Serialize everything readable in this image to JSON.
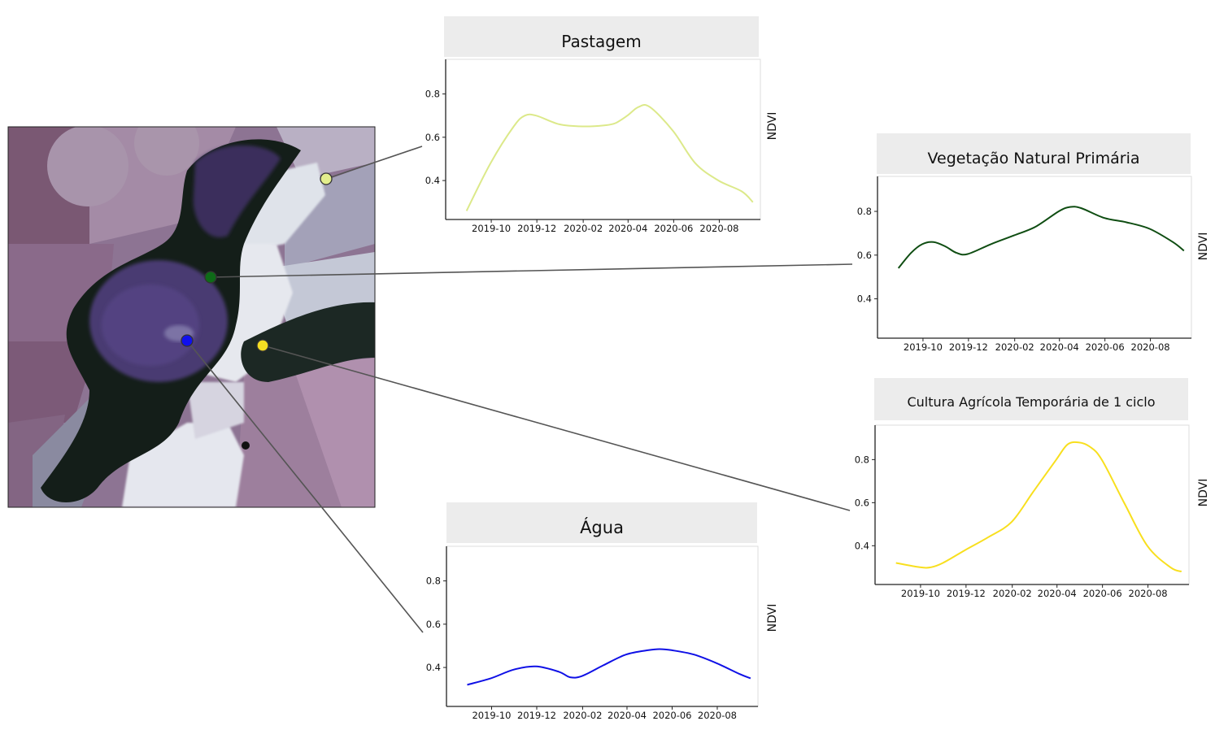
{
  "colors": {
    "pastagem": "#dce98a",
    "vegetacao": "#0f4d12",
    "cultura": "#f8df1e",
    "agua": "#0f10e6",
    "panel_header": "#ececec",
    "connector": "#555555"
  },
  "map": {
    "points": [
      {
        "name": "pastagem-point",
        "color": "#e3ee8d"
      },
      {
        "name": "vegetacao-point",
        "color": "#0e6b18"
      },
      {
        "name": "agua-point",
        "color": "#1010ee"
      },
      {
        "name": "cultura-point",
        "color": "#f5de22"
      }
    ]
  },
  "chart_data": [
    {
      "id": "pastagem",
      "type": "line",
      "title": "Pastagem",
      "ylabel": "NDVI",
      "xlabel": "",
      "x_tick_labels": [
        "2019-10",
        "2019-12",
        "2020-02",
        "2020-04",
        "2020-06",
        "2020-08"
      ],
      "y_ticks": [
        0.4,
        0.6,
        0.8
      ],
      "xlim": [
        "2019-08-01",
        "2020-09-25"
      ],
      "ylim": [
        0.22,
        0.96
      ],
      "grid": false,
      "series": [
        {
          "color": "#dce98a",
          "x": [
            "2019-08-29",
            "2019-09-30",
            "2019-10-31",
            "2019-11-15",
            "2019-11-30",
            "2019-12-31",
            "2020-01-31",
            "2020-02-29",
            "2020-03-15",
            "2020-03-31",
            "2020-04-15",
            "2020-04-30",
            "2020-05-31",
            "2020-06-30",
            "2020-07-31",
            "2020-08-31",
            "2020-09-15"
          ],
          "y": [
            0.26,
            0.48,
            0.65,
            0.7,
            0.7,
            0.66,
            0.65,
            0.655,
            0.665,
            0.7,
            0.74,
            0.74,
            0.63,
            0.48,
            0.4,
            0.35,
            0.3
          ]
        }
      ]
    },
    {
      "id": "vegetacao",
      "type": "line",
      "title": "Vegetação Natural Primária",
      "ylabel": "NDVI",
      "xlabel": "",
      "x_tick_labels": [
        "2019-10",
        "2019-12",
        "2020-02",
        "2020-04",
        "2020-06",
        "2020-08"
      ],
      "y_ticks": [
        0.4,
        0.6,
        0.8
      ],
      "xlim": [
        "2019-08-01",
        "2020-09-25"
      ],
      "ylim": [
        0.22,
        0.96
      ],
      "grid": false,
      "series": [
        {
          "color": "#0f4d12",
          "x": [
            "2019-08-29",
            "2019-09-15",
            "2019-09-30",
            "2019-10-15",
            "2019-10-31",
            "2019-11-15",
            "2019-11-30",
            "2019-12-31",
            "2020-01-31",
            "2020-02-29",
            "2020-03-31",
            "2020-04-15",
            "2020-04-30",
            "2020-05-31",
            "2020-06-30",
            "2020-07-31",
            "2020-08-31",
            "2020-09-15"
          ],
          "y": [
            0.54,
            0.61,
            0.65,
            0.66,
            0.64,
            0.61,
            0.605,
            0.65,
            0.69,
            0.73,
            0.8,
            0.82,
            0.815,
            0.77,
            0.75,
            0.72,
            0.66,
            0.62
          ]
        }
      ]
    },
    {
      "id": "cultura",
      "type": "line",
      "title": "Cultura Agrícola Temporária de 1 ciclo",
      "ylabel": "NDVI",
      "xlabel": "",
      "x_tick_labels": [
        "2019-10",
        "2019-12",
        "2020-02",
        "2020-04",
        "2020-06",
        "2020-08"
      ],
      "y_ticks": [
        0.4,
        0.6,
        0.8
      ],
      "xlim": [
        "2019-08-01",
        "2020-09-25"
      ],
      "ylim": [
        0.22,
        0.96
      ],
      "grid": false,
      "series": [
        {
          "color": "#f8df1e",
          "x": [
            "2019-08-29",
            "2019-09-30",
            "2019-10-15",
            "2019-10-31",
            "2019-11-30",
            "2019-12-31",
            "2020-01-31",
            "2020-02-29",
            "2020-03-31",
            "2020-04-15",
            "2020-04-30",
            "2020-05-15",
            "2020-05-31",
            "2020-06-30",
            "2020-07-31",
            "2020-08-31",
            "2020-09-15"
          ],
          "y": [
            0.32,
            0.3,
            0.3,
            0.32,
            0.38,
            0.44,
            0.51,
            0.65,
            0.8,
            0.87,
            0.88,
            0.86,
            0.8,
            0.6,
            0.4,
            0.3,
            0.28
          ]
        }
      ]
    },
    {
      "id": "agua",
      "type": "line",
      "title": "Água",
      "ylabel": "NDVI",
      "xlabel": "",
      "x_tick_labels": [
        "2019-10",
        "2019-12",
        "2020-02",
        "2020-04",
        "2020-06",
        "2020-08"
      ],
      "y_ticks": [
        0.4,
        0.6,
        0.8
      ],
      "xlim": [
        "2019-08-01",
        "2020-09-25"
      ],
      "ylim": [
        0.22,
        0.96
      ],
      "grid": false,
      "series": [
        {
          "color": "#0f10e6",
          "x": [
            "2019-08-29",
            "2019-09-30",
            "2019-10-31",
            "2019-11-30",
            "2019-12-31",
            "2020-01-15",
            "2020-01-31",
            "2020-02-29",
            "2020-03-31",
            "2020-04-30",
            "2020-05-15",
            "2020-05-31",
            "2020-06-30",
            "2020-07-31",
            "2020-08-31",
            "2020-09-15"
          ],
          "y": [
            0.32,
            0.35,
            0.39,
            0.405,
            0.38,
            0.355,
            0.36,
            0.41,
            0.46,
            0.48,
            0.485,
            0.48,
            0.46,
            0.42,
            0.37,
            0.35
          ]
        }
      ]
    }
  ]
}
